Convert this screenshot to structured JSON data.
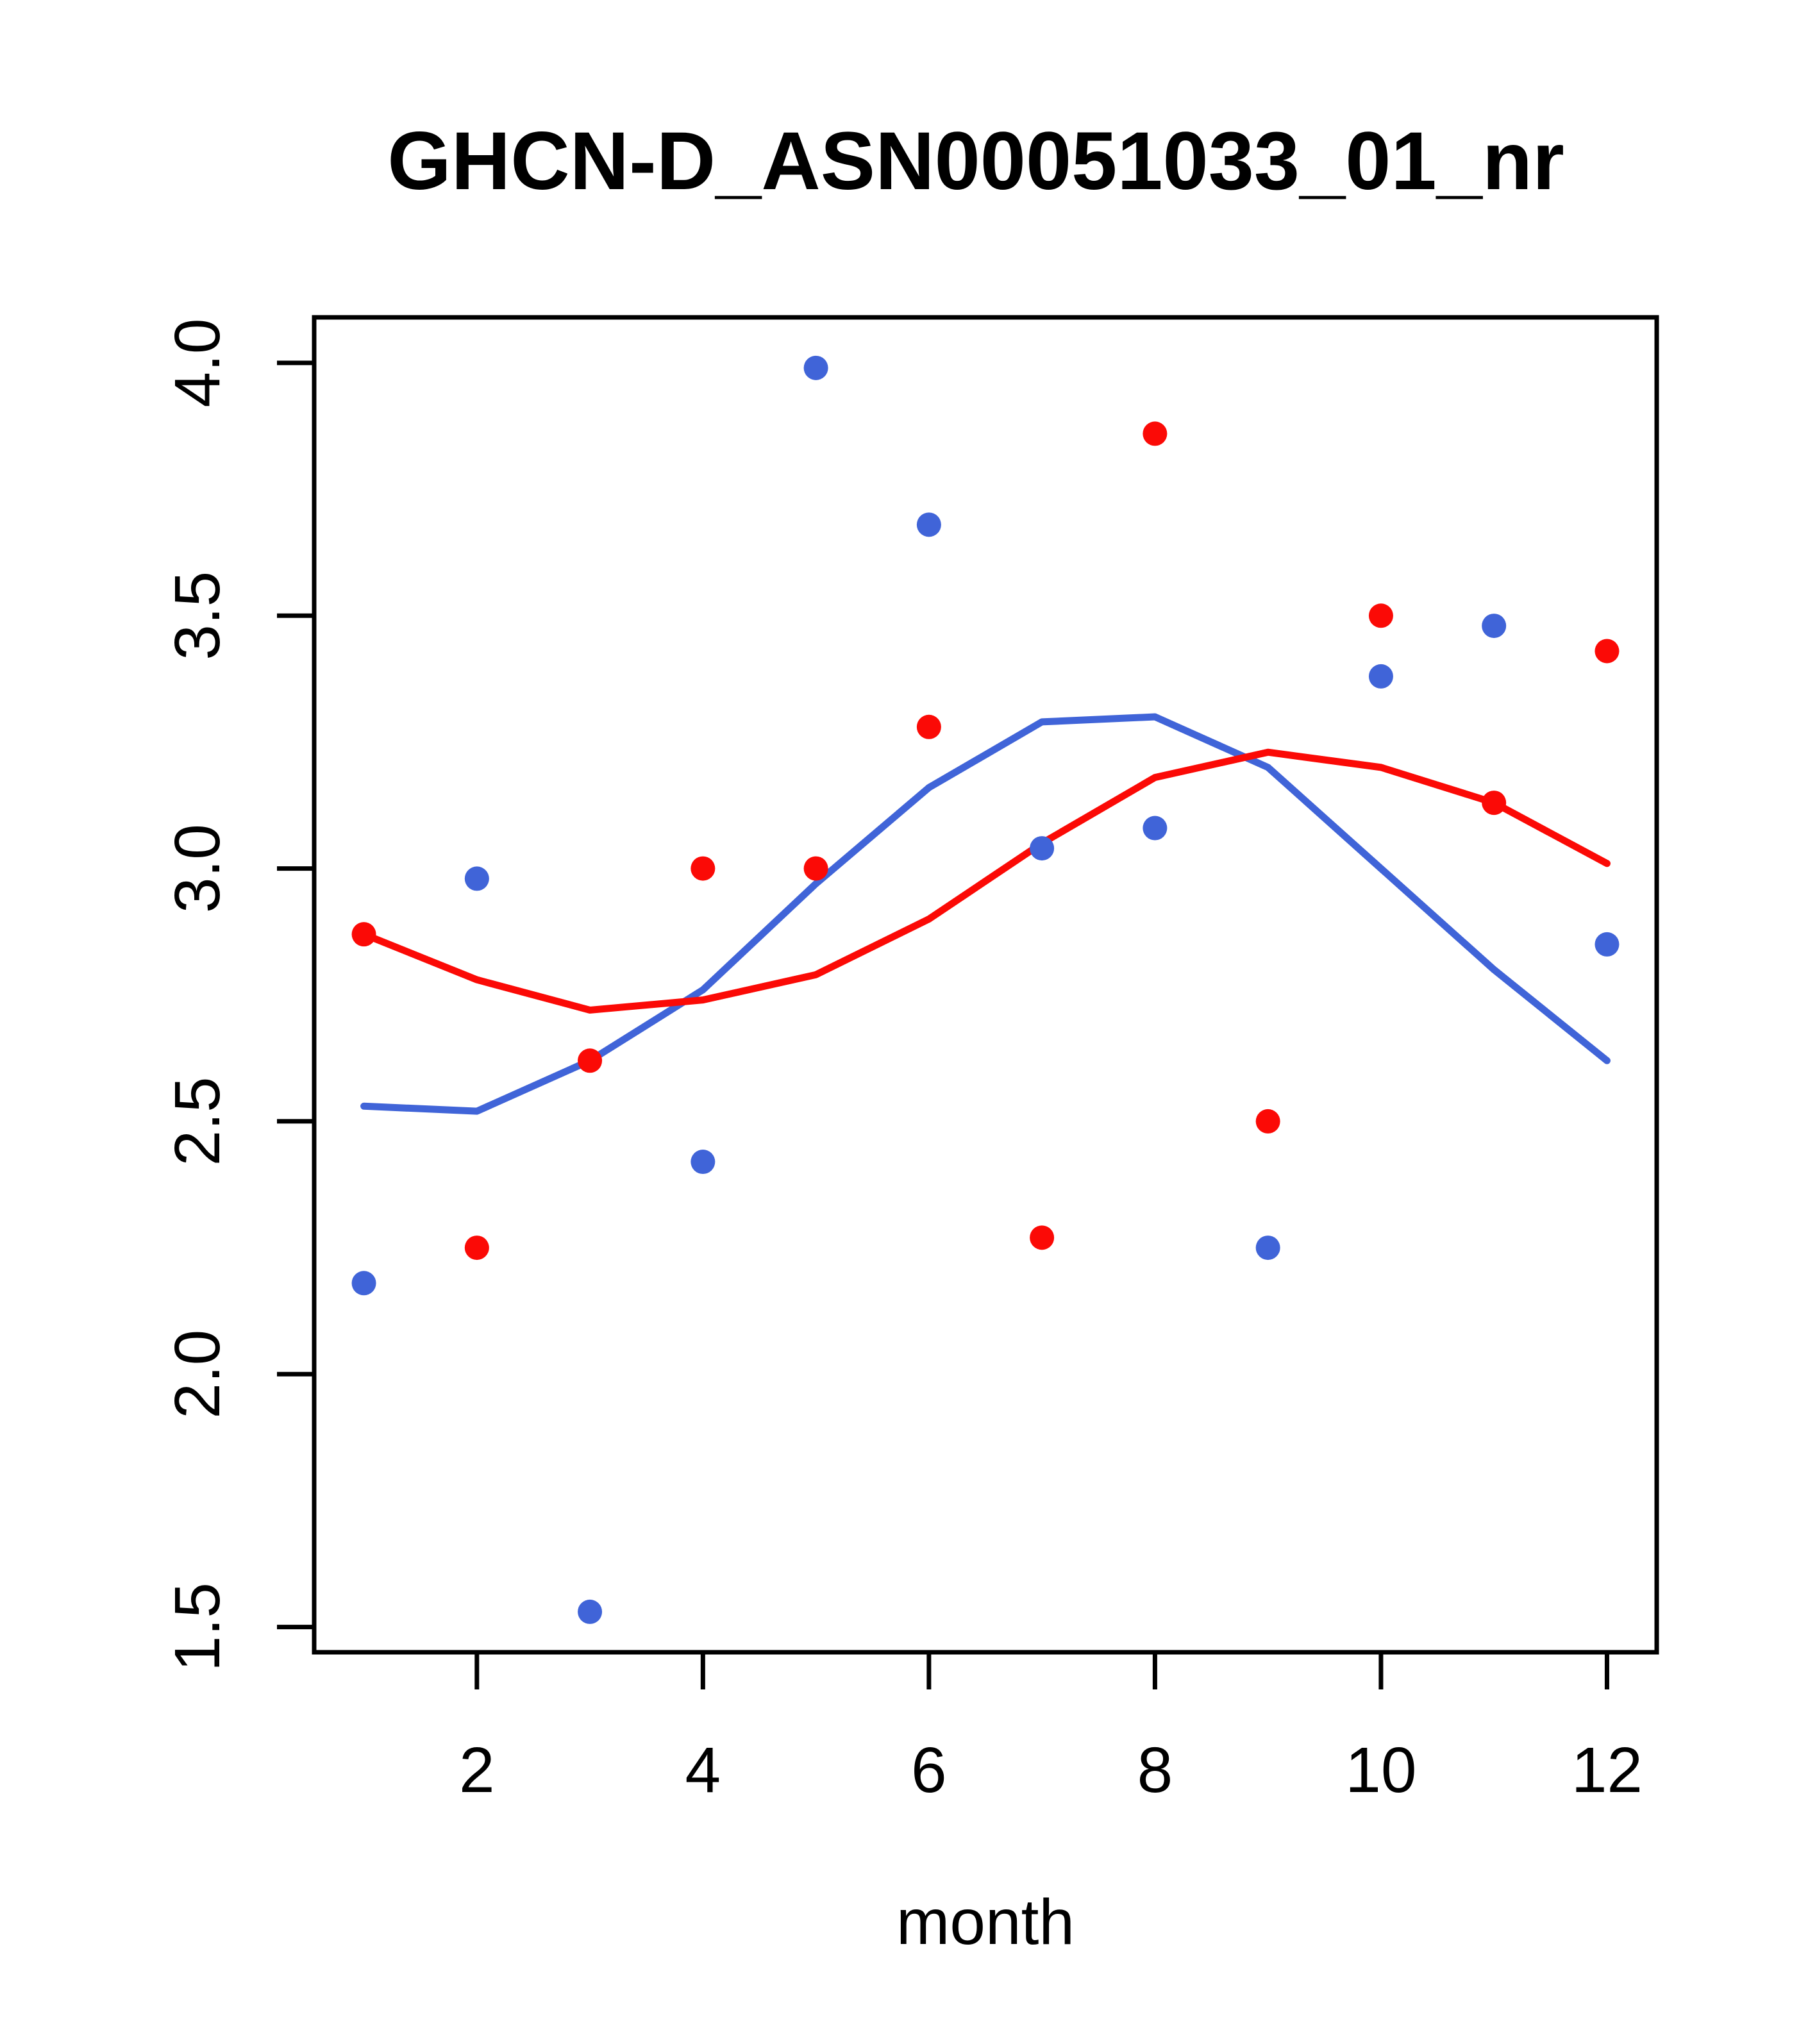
{
  "title": "GHCN-D_ASN00051033_01_nr",
  "chart_data": {
    "type": "scatter",
    "title": "GHCN-D_ASN00051033_01_nr",
    "xlabel": "month",
    "ylabel": "",
    "x": [
      1,
      2,
      3,
      4,
      5,
      6,
      7,
      8,
      9,
      10,
      11,
      12
    ],
    "xticks": [
      2,
      4,
      6,
      8,
      10,
      12
    ],
    "yticks": [
      "1.5",
      "2.0",
      "2.5",
      "3.0",
      "3.5",
      "4.0"
    ],
    "ytick_values": [
      1.5,
      2.0,
      2.5,
      3.0,
      3.5,
      4.0
    ],
    "xlim": [
      0.56,
      12.44
    ],
    "ylim": [
      1.45,
      4.09
    ],
    "grid": false,
    "legend_position": "none",
    "series": [
      {
        "name": "blue-points",
        "role": "points",
        "color": "#4064D8",
        "values": [
          2.18,
          2.98,
          1.53,
          2.42,
          3.99,
          3.68,
          3.04,
          3.08,
          2.25,
          3.38,
          3.48,
          2.85
        ]
      },
      {
        "name": "red-points",
        "role": "points",
        "color": "#FB0A06",
        "values": [
          2.87,
          2.25,
          2.62,
          3.0,
          3.0,
          3.28,
          2.27,
          3.86,
          2.5,
          3.5,
          3.13,
          3.43
        ]
      },
      {
        "name": "blue-loess-line",
        "role": "line",
        "color": "#4064D8",
        "values": [
          2.53,
          2.52,
          2.62,
          2.76,
          2.97,
          3.16,
          3.29,
          3.3,
          3.2,
          3.0,
          2.8,
          2.62
        ]
      },
      {
        "name": "red-loess-line",
        "role": "line",
        "color": "#FB0A06",
        "values": [
          2.87,
          2.78,
          2.72,
          2.74,
          2.79,
          2.9,
          3.05,
          3.18,
          3.23,
          3.2,
          3.13,
          3.01
        ]
      }
    ]
  },
  "style_tokens": {
    "background": "#ffffff",
    "axis_color": "#000000"
  }
}
